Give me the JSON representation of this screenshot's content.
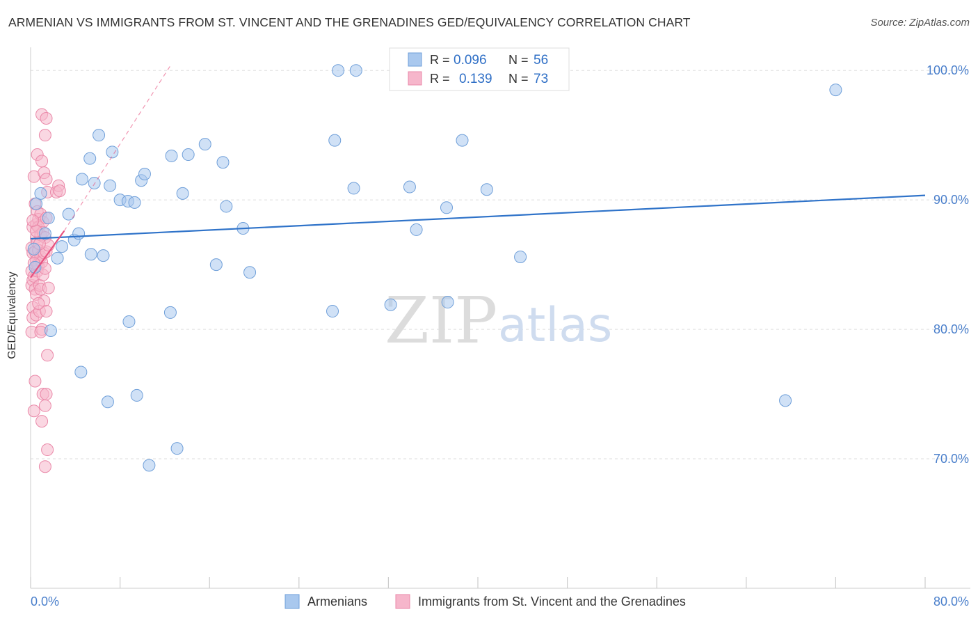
{
  "header": {
    "title": "ARMENIAN VS IMMIGRANTS FROM ST. VINCENT AND THE GRENADINES GED/EQUIVALENCY CORRELATION CHART",
    "source": "Source: ZipAtlas.com"
  },
  "watermark": {
    "zip": "ZIP",
    "atlas": "atlas"
  },
  "legend_box": {
    "rows": [
      {
        "r_label": "R =",
        "r_value": "0.096",
        "n_label": "N =",
        "n_value": "56"
      },
      {
        "r_label": "R =",
        "r_value": "0.139",
        "n_label": "N =",
        "n_value": "73"
      }
    ]
  },
  "colors": {
    "blue_fill": "#a9c8ee",
    "blue_stroke": "#6f9fd9",
    "blue_line": "#2f73c9",
    "pink_fill": "#f6b6cb",
    "pink_stroke": "#ea88a8",
    "pink_line": "#e8507f",
    "axis_label": "#4a7fcb",
    "grid": "#dddddd"
  },
  "chart_data": {
    "type": "scatter",
    "ylabel": "GED/Equivalency",
    "xlim": [
      0,
      80
    ],
    "ylim": [
      60,
      102
    ],
    "x_tick_labels": [
      "0.0%",
      "80.0%"
    ],
    "y_ticks": [
      70,
      80,
      90,
      100
    ],
    "y_tick_labels": [
      "70.0%",
      "80.0%",
      "90.0%",
      "100.0%"
    ],
    "grid": true,
    "legend_placement": "bottom-center",
    "series": [
      {
        "name": "Armenians",
        "r": 0.096,
        "n": 56,
        "trend": {
          "x": [
            0,
            80
          ],
          "y": [
            87.0,
            90.35
          ]
        },
        "points": [
          [
            0.3,
            86.2
          ],
          [
            0.4,
            84.8
          ],
          [
            0.5,
            89.7
          ],
          [
            0.9,
            90.5
          ],
          [
            1.3,
            87.4
          ],
          [
            1.6,
            88.6
          ],
          [
            1.8,
            79.9
          ],
          [
            2.4,
            85.5
          ],
          [
            2.8,
            86.4
          ],
          [
            3.4,
            88.9
          ],
          [
            3.9,
            86.9
          ],
          [
            4.3,
            87.4
          ],
          [
            4.5,
            76.7
          ],
          [
            4.6,
            91.6
          ],
          [
            5.3,
            93.2
          ],
          [
            5.4,
            85.8
          ],
          [
            5.7,
            91.3
          ],
          [
            6.1,
            95.0
          ],
          [
            6.5,
            85.7
          ],
          [
            6.9,
            74.4
          ],
          [
            7.1,
            91.1
          ],
          [
            7.3,
            93.7
          ],
          [
            8.0,
            90.0
          ],
          [
            8.7,
            89.9
          ],
          [
            8.8,
            80.6
          ],
          [
            9.3,
            89.8
          ],
          [
            9.5,
            74.9
          ],
          [
            9.9,
            91.5
          ],
          [
            10.2,
            92.0
          ],
          [
            10.6,
            69.5
          ],
          [
            12.5,
            81.3
          ],
          [
            12.6,
            93.4
          ],
          [
            13.1,
            70.8
          ],
          [
            13.6,
            90.5
          ],
          [
            14.1,
            93.5
          ],
          [
            15.6,
            94.3
          ],
          [
            16.6,
            85.0
          ],
          [
            17.2,
            92.9
          ],
          [
            17.5,
            89.5
          ],
          [
            19.0,
            87.8
          ],
          [
            19.6,
            84.4
          ],
          [
            27.0,
            81.4
          ],
          [
            27.2,
            94.6
          ],
          [
            27.5,
            100.0
          ],
          [
            28.9,
            90.9
          ],
          [
            29.1,
            100.0
          ],
          [
            32.2,
            81.9
          ],
          [
            33.9,
            91.0
          ],
          [
            34.5,
            87.7
          ],
          [
            37.2,
            89.4
          ],
          [
            37.3,
            82.1
          ],
          [
            38.6,
            94.6
          ],
          [
            40.8,
            90.8
          ],
          [
            43.8,
            85.6
          ],
          [
            67.5,
            74.5
          ],
          [
            72.0,
            98.5
          ]
        ]
      },
      {
        "name": "Immigrants from St. Vincent and the Grenadines",
        "r": 0.139,
        "n": 73,
        "trend": {
          "x": [
            0,
            3.0
          ],
          "y": [
            84.0,
            87.6
          ]
        },
        "trend_dashed": {
          "x": [
            3.0,
            12.6
          ],
          "y": [
            87.6,
            100.5
          ]
        },
        "points": [
          [
            0.1,
            86.3
          ],
          [
            0.1,
            84.5
          ],
          [
            0.1,
            83.4
          ],
          [
            0.1,
            79.8
          ],
          [
            0.2,
            87.9
          ],
          [
            0.2,
            85.9
          ],
          [
            0.2,
            83.8
          ],
          [
            0.2,
            81.7
          ],
          [
            0.2,
            80.9
          ],
          [
            0.3,
            91.8
          ],
          [
            0.3,
            84.1
          ],
          [
            0.3,
            73.7
          ],
          [
            0.4,
            89.7
          ],
          [
            0.4,
            86.0
          ],
          [
            0.4,
            83.1
          ],
          [
            0.4,
            76.0
          ],
          [
            0.5,
            88.1
          ],
          [
            0.5,
            87.1
          ],
          [
            0.5,
            85.3
          ],
          [
            0.5,
            82.7
          ],
          [
            0.5,
            81.1
          ],
          [
            0.6,
            93.5
          ],
          [
            0.6,
            89.1
          ],
          [
            0.6,
            86.7
          ],
          [
            0.6,
            85.0
          ],
          [
            0.6,
            84.5
          ],
          [
            0.7,
            88.5
          ],
          [
            0.7,
            87.9
          ],
          [
            0.7,
            86.1
          ],
          [
            0.7,
            84.9
          ],
          [
            0.8,
            83.4
          ],
          [
            0.8,
            81.4
          ],
          [
            0.9,
            88.9
          ],
          [
            0.9,
            87.3
          ],
          [
            0.9,
            85.6
          ],
          [
            0.9,
            83.1
          ],
          [
            1.0,
            93.0
          ],
          [
            1.0,
            85.2
          ],
          [
            1.0,
            80.0
          ],
          [
            1.0,
            72.9
          ],
          [
            1.0,
            96.6
          ],
          [
            1.1,
            88.3
          ],
          [
            1.1,
            87.5
          ],
          [
            1.1,
            84.2
          ],
          [
            1.1,
            75.0
          ],
          [
            1.2,
            92.1
          ],
          [
            1.2,
            85.9
          ],
          [
            1.2,
            82.2
          ],
          [
            1.3,
            95.0
          ],
          [
            1.3,
            87.1
          ],
          [
            1.3,
            84.7
          ],
          [
            1.3,
            74.1
          ],
          [
            1.3,
            69.4
          ],
          [
            1.4,
            96.3
          ],
          [
            1.4,
            91.6
          ],
          [
            1.4,
            88.6
          ],
          [
            1.4,
            86.0
          ],
          [
            1.4,
            81.4
          ],
          [
            1.4,
            75.0
          ],
          [
            1.5,
            90.6
          ],
          [
            1.5,
            78.0
          ],
          [
            1.5,
            70.7
          ],
          [
            1.6,
            83.2
          ],
          [
            1.6,
            86.5
          ],
          [
            2.3,
            90.6
          ],
          [
            2.5,
            91.1
          ],
          [
            2.6,
            90.7
          ],
          [
            0.5,
            87.6
          ],
          [
            0.8,
            86.6
          ],
          [
            0.3,
            85.1
          ],
          [
            0.7,
            82.0
          ],
          [
            0.9,
            79.8
          ],
          [
            0.2,
            88.4
          ]
        ]
      }
    ]
  }
}
